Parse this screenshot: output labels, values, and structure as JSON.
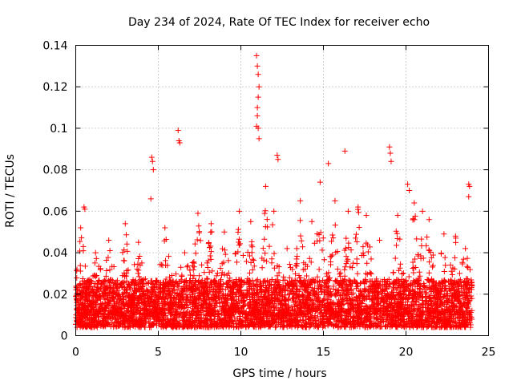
{
  "chart_data": {
    "type": "scatter",
    "title": "Day 234 of 2024, Rate Of TEC Index for receiver echo",
    "xlabel": "GPS time / hours",
    "ylabel": "ROTI / TECUs",
    "xlim": [
      0,
      25
    ],
    "ylim": [
      0,
      0.14
    ],
    "xticks": [
      "0",
      "5",
      "10",
      "15",
      "20",
      "25"
    ],
    "yticks": [
      "0",
      "0.02",
      "0.04",
      "0.06",
      "0.08",
      "0.1",
      "0.12",
      "0.14"
    ],
    "grid": true,
    "marker": "+",
    "color": "#ff0000",
    "series": [
      {
        "name": "ROTI",
        "dense_band": {
          "x_start": 0,
          "x_end": 24,
          "y_min": 0.004,
          "y_typical_max": 0.035
        },
        "notable_points": [
          {
            "x": 0.5,
            "y": 0.062
          },
          {
            "x": 0.55,
            "y": 0.061
          },
          {
            "x": 4.6,
            "y": 0.086
          },
          {
            "x": 4.65,
            "y": 0.084
          },
          {
            "x": 4.7,
            "y": 0.08
          },
          {
            "x": 4.55,
            "y": 0.066
          },
          {
            "x": 6.2,
            "y": 0.099
          },
          {
            "x": 6.25,
            "y": 0.094
          },
          {
            "x": 6.3,
            "y": 0.093
          },
          {
            "x": 10.95,
            "y": 0.135
          },
          {
            "x": 11.0,
            "y": 0.13
          },
          {
            "x": 11.05,
            "y": 0.126
          },
          {
            "x": 11.1,
            "y": 0.12
          },
          {
            "x": 11.05,
            "y": 0.115
          },
          {
            "x": 11.0,
            "y": 0.11
          },
          {
            "x": 11.0,
            "y": 0.106
          },
          {
            "x": 10.95,
            "y": 0.101
          },
          {
            "x": 11.05,
            "y": 0.1
          },
          {
            "x": 11.1,
            "y": 0.095
          },
          {
            "x": 12.2,
            "y": 0.087
          },
          {
            "x": 12.25,
            "y": 0.085
          },
          {
            "x": 15.3,
            "y": 0.083
          },
          {
            "x": 16.3,
            "y": 0.089
          },
          {
            "x": 19.0,
            "y": 0.091
          },
          {
            "x": 19.05,
            "y": 0.088
          },
          {
            "x": 19.1,
            "y": 0.084
          },
          {
            "x": 20.1,
            "y": 0.073
          },
          {
            "x": 20.2,
            "y": 0.07
          },
          {
            "x": 23.8,
            "y": 0.073
          },
          {
            "x": 23.85,
            "y": 0.072
          },
          {
            "x": 23.8,
            "y": 0.067
          }
        ],
        "segment_peaks": [
          {
            "x": 0.3,
            "y": 0.052
          },
          {
            "x": 1.2,
            "y": 0.04
          },
          {
            "x": 2.0,
            "y": 0.046
          },
          {
            "x": 3.0,
            "y": 0.054
          },
          {
            "x": 3.8,
            "y": 0.045
          },
          {
            "x": 5.4,
            "y": 0.052
          },
          {
            "x": 6.6,
            "y": 0.04
          },
          {
            "x": 7.4,
            "y": 0.059
          },
          {
            "x": 8.2,
            "y": 0.054
          },
          {
            "x": 9.0,
            "y": 0.05
          },
          {
            "x": 9.9,
            "y": 0.06
          },
          {
            "x": 10.6,
            "y": 0.055
          },
          {
            "x": 11.5,
            "y": 0.072
          },
          {
            "x": 12.0,
            "y": 0.06
          },
          {
            "x": 12.8,
            "y": 0.042
          },
          {
            "x": 13.6,
            "y": 0.065
          },
          {
            "x": 14.3,
            "y": 0.055
          },
          {
            "x": 14.8,
            "y": 0.074
          },
          {
            "x": 15.7,
            "y": 0.065
          },
          {
            "x": 16.5,
            "y": 0.06
          },
          {
            "x": 17.1,
            "y": 0.062
          },
          {
            "x": 17.6,
            "y": 0.058
          },
          {
            "x": 18.4,
            "y": 0.046
          },
          {
            "x": 19.5,
            "y": 0.058
          },
          {
            "x": 20.5,
            "y": 0.064
          },
          {
            "x": 21.0,
            "y": 0.06
          },
          {
            "x": 21.4,
            "y": 0.056
          },
          {
            "x": 22.3,
            "y": 0.049
          },
          {
            "x": 23.0,
            "y": 0.048
          },
          {
            "x": 23.6,
            "y": 0.042
          }
        ]
      }
    ]
  }
}
